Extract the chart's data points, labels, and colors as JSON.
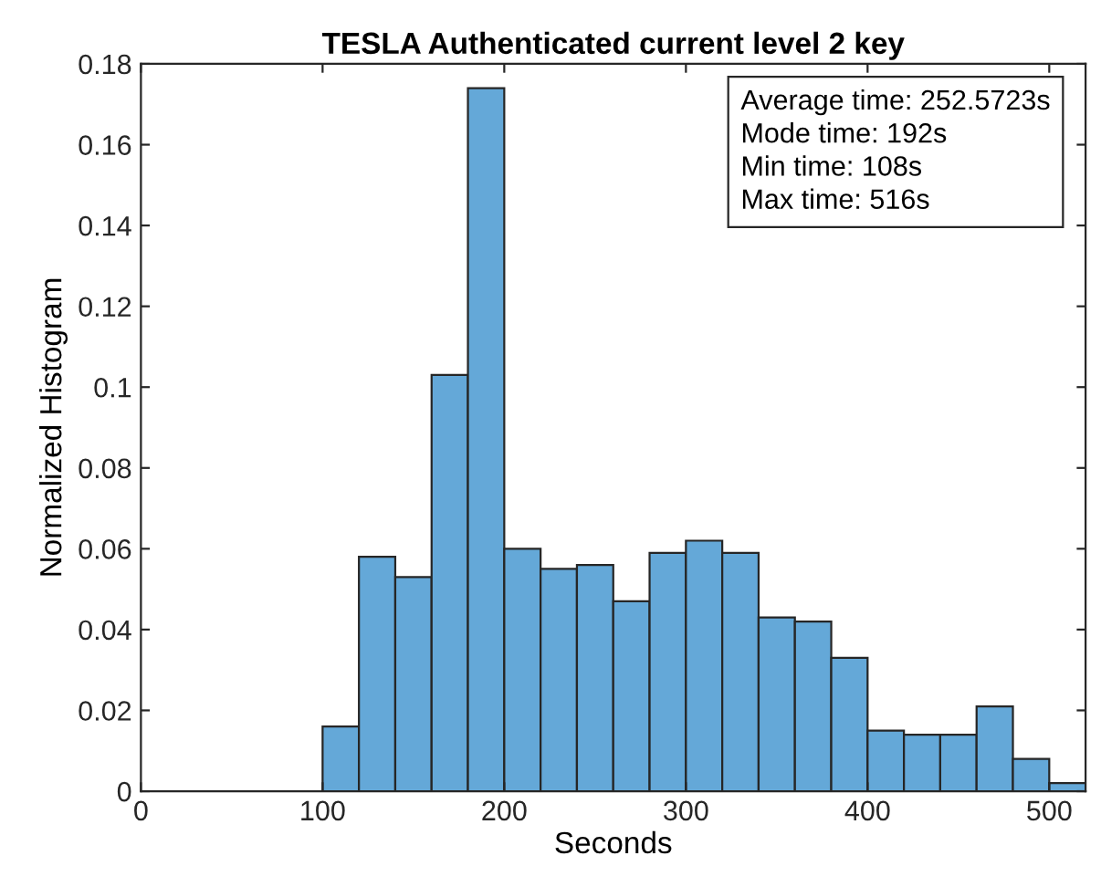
{
  "chart_data": {
    "type": "histogram",
    "title": "TESLA Authenticated current level 2 key",
    "xlabel": "Seconds",
    "ylabel": "Normalized Histogram",
    "bins": [
      100,
      120,
      140,
      160,
      180,
      200,
      220,
      240,
      260,
      280,
      300,
      320,
      340,
      360,
      380,
      400,
      420,
      440,
      460,
      480,
      500,
      520
    ],
    "values": [
      0.016,
      0.058,
      0.053,
      0.103,
      0.174,
      0.06,
      0.055,
      0.056,
      0.047,
      0.059,
      0.062,
      0.059,
      0.043,
      0.042,
      0.033,
      0.015,
      0.014,
      0.014,
      0.021,
      0.008,
      0.002
    ],
    "color": "#64a8d8",
    "xlim": [
      0,
      520
    ],
    "xticks": [
      0,
      100,
      200,
      300,
      400,
      500
    ],
    "ylim": [
      0,
      0.18
    ],
    "yticks": [
      0,
      0.02,
      0.04,
      0.06,
      0.08,
      0.1,
      0.12,
      0.14,
      0.16,
      0.18
    ],
    "grid": false,
    "annotations": [
      "Average time: 252.5723s",
      "Mode time: 192s",
      "Min time: 108s",
      "Max time: 516s"
    ]
  }
}
